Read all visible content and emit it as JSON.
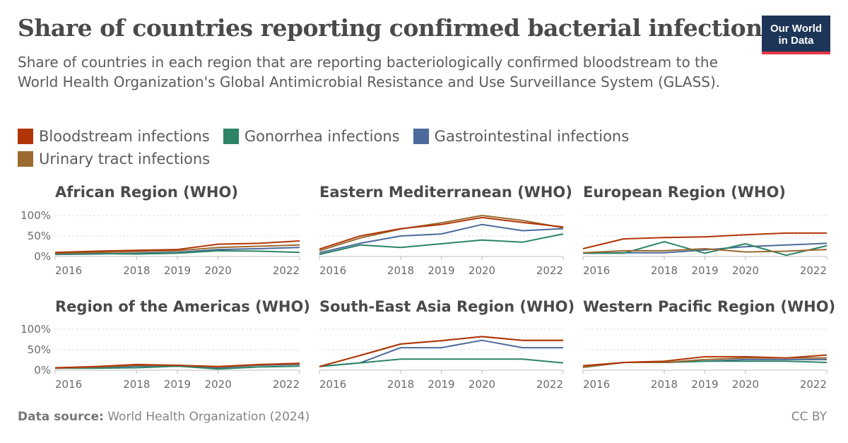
{
  "title": "Share of countries reporting confirmed bacterial infections",
  "subtitle": "Share of countries in each region that are reporting bacteriologically confirmed bloodstream to the World Health Organization's Global Antimicrobial Resistance and Use Surveillance System (GLASS).",
  "logo": {
    "line1": "Our World",
    "line2": "in Data",
    "bg_color": "#1d3557",
    "accent_color": "#e63946"
  },
  "footer": {
    "source_label": "Data source:",
    "source_text": "World Health Organization (2024)",
    "license": "CC BY"
  },
  "chart_data": {
    "type": "line",
    "legend_position": "top",
    "series_meta": [
      {
        "name": "Bloodstream infections",
        "color": "#b13507"
      },
      {
        "name": "Gonorrhea infections",
        "color": "#2c8465"
      },
      {
        "name": "Gastrointestinal infections",
        "color": "#4c6a9c"
      },
      {
        "name": "Urinary tract infections",
        "color": "#9a6a30"
      }
    ],
    "x_ticks": [
      "2016",
      "2018",
      "2019",
      "2020",
      "2022"
    ],
    "y_ticks": [
      "0%",
      "50%",
      "100%"
    ],
    "ylim": [
      0,
      100
    ],
    "panels": [
      {
        "title": "African Region (WHO)",
        "show_y_axis": true,
        "x": [
          2016,
          2017,
          2018,
          2019,
          2020,
          2021,
          2022
        ],
        "series": [
          {
            "name": "Bloodstream infections",
            "values": [
              10,
              13,
              15,
              17,
              30,
              32,
              38
            ]
          },
          {
            "name": "Gonorrhea infections",
            "values": [
              6,
              7,
              6,
              8,
              14,
              13,
              10
            ]
          },
          {
            "name": "Gastrointestinal infections",
            "values": [
              5,
              6,
              8,
              10,
              17,
              19,
              22
            ]
          },
          {
            "name": "Urinary tract infections",
            "values": [
              8,
              10,
              12,
              14,
              22,
              25,
              28
            ]
          }
        ]
      },
      {
        "title": "Eastern Mediterranean (WHO)",
        "show_y_axis": false,
        "x": [
          2016,
          2017,
          2018,
          2019,
          2020,
          2021,
          2022
        ],
        "series": [
          {
            "name": "Bloodstream infections",
            "values": [
              18,
              50,
              68,
              78,
              95,
              83,
              72
            ]
          },
          {
            "name": "Gonorrhea infections",
            "values": [
              5,
              28,
              22,
              31,
              40,
              35,
              55
            ]
          },
          {
            "name": "Gastrointestinal infections",
            "values": [
              9,
              32,
              50,
              55,
              78,
              63,
              68
            ]
          },
          {
            "name": "Urinary tract infections",
            "values": [
              14,
              45,
              67,
              82,
              100,
              88,
              70
            ]
          }
        ]
      },
      {
        "title": "European Region (WHO)",
        "show_y_axis": false,
        "x": [
          2016,
          2017,
          2018,
          2019,
          2020,
          2021,
          2022
        ],
        "series": [
          {
            "name": "Bloodstream infections",
            "values": [
              19,
              43,
              46,
              48,
              53,
              57,
              57
            ]
          },
          {
            "name": "Gonorrhea infections",
            "values": [
              8,
              8,
              36,
              8,
              31,
              3,
              26
            ]
          },
          {
            "name": "Gastrointestinal infections",
            "values": [
              8,
              9,
              9,
              16,
              24,
              28,
              32
            ]
          },
          {
            "name": "Urinary tract infections",
            "values": [
              9,
              14,
              14,
              19,
              11,
              13,
              17
            ]
          }
        ]
      },
      {
        "title": "Region of the Americas (WHO)",
        "show_y_axis": true,
        "x": [
          2016,
          2017,
          2018,
          2019,
          2020,
          2021,
          2022
        ],
        "series": [
          {
            "name": "Bloodstream infections",
            "values": [
              6,
              9,
              14,
              12,
              9,
              14,
              17
            ]
          },
          {
            "name": "Gonorrhea infections",
            "values": [
              5,
              5,
              6,
              10,
              3,
              8,
              10
            ]
          },
          {
            "name": "Gastrointestinal infections",
            "values": [
              5,
              6,
              10,
              10,
              6,
              12,
              14
            ]
          },
          {
            "name": "Urinary tract infections",
            "values": [
              5,
              8,
              12,
              12,
              8,
              13,
              16
            ]
          }
        ]
      },
      {
        "title": "South-East Asia Region (WHO)",
        "show_y_axis": false,
        "x": [
          2016,
          2017,
          2018,
          2019,
          2020,
          2021,
          2022
        ],
        "series": [
          {
            "name": "Bloodstream infections",
            "values": [
              9,
              36,
              64,
              72,
              82,
              73,
              73
            ]
          },
          {
            "name": "Gonorrhea infections",
            "values": [
              9,
              18,
              27,
              27,
              27,
              27,
              18
            ]
          },
          {
            "name": "Gastrointestinal infections",
            "values": [
              9,
              18,
              55,
              55,
              73,
              55,
              55
            ]
          },
          {
            "name": "Urinary tract infections",
            "values": [
              9,
              36,
              64,
              72,
              82,
              73,
              73
            ]
          }
        ]
      },
      {
        "title": "Western Pacific Region (WHO)",
        "show_y_axis": false,
        "x": [
          2016,
          2017,
          2018,
          2019,
          2020,
          2021,
          2022
        ],
        "series": [
          {
            "name": "Bloodstream infections",
            "values": [
              11,
              19,
              22,
              33,
              33,
              30,
              37
            ]
          },
          {
            "name": "Gonorrhea infections",
            "values": [
              7,
              19,
              19,
              22,
              22,
              22,
              19
            ]
          },
          {
            "name": "Gastrointestinal infections",
            "values": [
              7,
              19,
              19,
              22,
              26,
              26,
              26
            ]
          },
          {
            "name": "Urinary tract infections",
            "values": [
              7,
              19,
              19,
              26,
              30,
              30,
              30
            ]
          }
        ]
      }
    ]
  }
}
